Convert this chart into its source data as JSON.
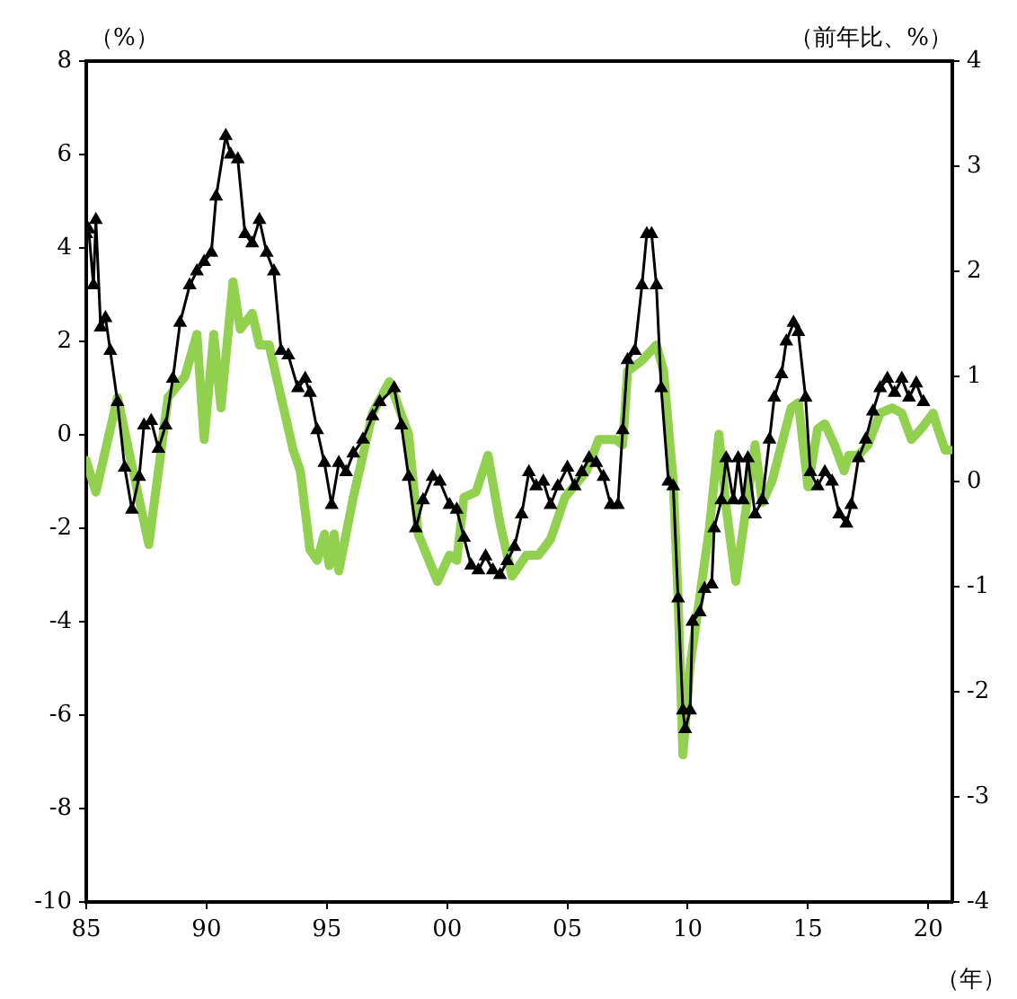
{
  "chart_data": {
    "type": "line",
    "xlabel": "（年）",
    "ylabel": "（%）",
    "y2label": "（前年比、%）",
    "legend": false,
    "xlim": [
      1985,
      2021
    ],
    "xticks": [
      {
        "value": 1985,
        "label": "85"
      },
      {
        "value": 1990,
        "label": "90"
      },
      {
        "value": 1995,
        "label": "95"
      },
      {
        "value": 2000,
        "label": "00"
      },
      {
        "value": 2005,
        "label": "05"
      },
      {
        "value": 2010,
        "label": "10"
      },
      {
        "value": 2015,
        "label": "15"
      },
      {
        "value": 2020,
        "label": "20"
      }
    ],
    "ylim": [
      -10,
      8
    ],
    "yticks": [
      -10,
      -8,
      -6,
      -4,
      -2,
      0,
      2,
      4,
      6,
      8
    ],
    "y2lim": [
      -4,
      4
    ],
    "y2ticks": [
      -4,
      -3,
      -2,
      -1,
      0,
      1,
      2,
      3,
      4
    ],
    "series": [
      {
        "axis": "y2",
        "color": "#92d050",
        "marker": "none",
        "x": [
          1985.0,
          1985.4,
          1986.3,
          1987.6,
          1988.4,
          1989.1,
          1989.6,
          1989.9,
          1990.3,
          1990.6,
          1991.1,
          1991.4,
          1991.9,
          1992.2,
          1992.6,
          1993.1,
          1993.6,
          1993.9,
          1994.3,
          1994.6,
          1994.9,
          1995.1,
          1995.3,
          1995.5,
          1996.1,
          1996.9,
          1997.6,
          1998.4,
          1998.8,
          1999.6,
          2000.1,
          2000.4,
          2000.7,
          2001.2,
          2001.7,
          2002.2,
          2002.7,
          2003.3,
          2003.8,
          2004.3,
          2004.9,
          2005.8,
          2006.3,
          2007.0,
          2007.3,
          2007.5,
          2008.1,
          2008.7,
          2009.0,
          2009.4,
          2009.6,
          2009.8,
          2010.1,
          2010.5,
          2010.9,
          2011.3,
          2011.6,
          2012.0,
          2012.4,
          2012.8,
          2013.1,
          2013.5,
          2013.9,
          2014.3,
          2014.6,
          2015.0,
          2015.4,
          2015.7,
          2016.1,
          2016.5,
          2016.7,
          2017.1,
          2017.5,
          2018.0,
          2018.5,
          2018.9,
          2019.3,
          2019.7,
          2020.2,
          2020.4,
          2020.7,
          2020.9
        ],
        "values": [
          0.2,
          -0.1,
          0.8,
          -0.6,
          0.8,
          1.0,
          1.4,
          0.4,
          1.4,
          0.7,
          1.9,
          1.45,
          1.6,
          1.3,
          1.3,
          0.8,
          0.3,
          0.1,
          -0.65,
          -0.75,
          -0.5,
          -0.8,
          -0.5,
          -0.85,
          -0.15,
          0.65,
          0.95,
          0.45,
          -0.5,
          -0.95,
          -0.7,
          -0.75,
          -0.15,
          -0.1,
          0.25,
          -0.4,
          -0.9,
          -0.7,
          -0.7,
          -0.55,
          -0.15,
          0.1,
          0.4,
          0.4,
          0.35,
          1.05,
          1.15,
          1.3,
          1.05,
          0.0,
          -1.1,
          -2.6,
          -1.75,
          -1.1,
          -0.45,
          0.45,
          -0.25,
          -0.95,
          -0.3,
          0.35,
          -0.2,
          0.0,
          0.35,
          0.7,
          0.75,
          -0.05,
          0.5,
          0.55,
          0.35,
          0.1,
          0.25,
          0.25,
          0.35,
          0.65,
          0.7,
          0.65,
          0.4,
          0.5,
          0.65,
          0.5,
          0.3,
          0.3
        ]
      },
      {
        "axis": "y",
        "color": "#000000",
        "marker": "triangle",
        "x": [
          1985.0,
          1985.1,
          1985.3,
          1985.4,
          1985.6,
          1985.8,
          1986.0,
          1986.3,
          1986.6,
          1986.9,
          1987.2,
          1987.4,
          1987.7,
          1988.0,
          1988.3,
          1988.6,
          1988.9,
          1989.3,
          1989.6,
          1989.9,
          1990.2,
          1990.4,
          1990.8,
          1991.0,
          1991.3,
          1991.6,
          1991.9,
          1992.2,
          1992.5,
          1992.8,
          1993.1,
          1993.4,
          1993.8,
          1994.1,
          1994.3,
          1994.6,
          1994.9,
          1995.2,
          1995.5,
          1995.8,
          1996.1,
          1996.5,
          1996.9,
          1997.2,
          1997.8,
          1998.1,
          1998.4,
          1998.7,
          1999.0,
          1999.4,
          1999.7,
          2000.1,
          2000.4,
          2000.7,
          2001.0,
          2001.3,
          2001.6,
          2001.9,
          2002.2,
          2002.5,
          2002.8,
          2003.1,
          2003.4,
          2003.7,
          2004.0,
          2004.3,
          2004.6,
          2005.0,
          2005.3,
          2005.6,
          2005.9,
          2006.2,
          2006.5,
          2006.8,
          2007.1,
          2007.3,
          2007.5,
          2007.8,
          2008.1,
          2008.3,
          2008.5,
          2008.7,
          2008.9,
          2009.2,
          2009.4,
          2009.6,
          2009.8,
          2009.9,
          2010.1,
          2010.2,
          2010.5,
          2010.7,
          2011.0,
          2011.1,
          2011.4,
          2011.6,
          2011.9,
          2012.1,
          2012.3,
          2012.5,
          2012.8,
          2013.1,
          2013.4,
          2013.6,
          2013.9,
          2014.1,
          2014.4,
          2014.6,
          2014.9,
          2015.1,
          2015.4,
          2015.7,
          2016.0,
          2016.3,
          2016.6,
          2016.8,
          2017.1,
          2017.4,
          2017.7,
          2018.0,
          2018.3,
          2018.6,
          2018.9,
          2019.2,
          2019.5,
          2019.8
        ],
        "values": [
          4.3,
          4.4,
          3.2,
          4.6,
          2.3,
          2.5,
          1.8,
          0.7,
          -0.7,
          -1.6,
          -0.9,
          0.2,
          0.3,
          -0.3,
          0.2,
          1.2,
          2.4,
          3.2,
          3.5,
          3.7,
          3.9,
          5.1,
          6.4,
          6.0,
          5.9,
          4.3,
          4.1,
          4.6,
          3.9,
          3.5,
          1.8,
          1.7,
          1.0,
          1.2,
          0.9,
          0.1,
          -0.6,
          -1.5,
          -0.6,
          -0.8,
          -0.4,
          -0.1,
          0.4,
          0.7,
          1.0,
          0.2,
          -0.9,
          -2.0,
          -1.4,
          -0.9,
          -1.0,
          -1.5,
          -1.6,
          -2.2,
          -2.8,
          -2.9,
          -2.6,
          -2.9,
          -3.0,
          -2.7,
          -2.4,
          -1.7,
          -0.8,
          -1.1,
          -1.0,
          -1.5,
          -1.1,
          -0.7,
          -1.1,
          -0.8,
          -0.5,
          -0.6,
          -0.9,
          -1.5,
          -1.5,
          0.1,
          1.6,
          1.8,
          3.2,
          4.3,
          4.3,
          3.2,
          1.0,
          -1.0,
          -1.1,
          -3.5,
          -5.9,
          -6.3,
          -5.9,
          -4.0,
          -3.8,
          -3.3,
          -3.2,
          -2.0,
          -1.4,
          -0.5,
          -1.4,
          -0.5,
          -1.4,
          -0.5,
          -1.7,
          -1.4,
          -0.1,
          0.8,
          1.3,
          2.0,
          2.4,
          2.2,
          0.8,
          -0.8,
          -1.1,
          -0.8,
          -1.0,
          -1.7,
          -1.9,
          -1.5,
          -0.5,
          -0.1,
          0.5,
          1.0,
          1.2,
          0.9,
          1.2,
          0.8,
          1.1,
          0.7
        ]
      }
    ]
  }
}
